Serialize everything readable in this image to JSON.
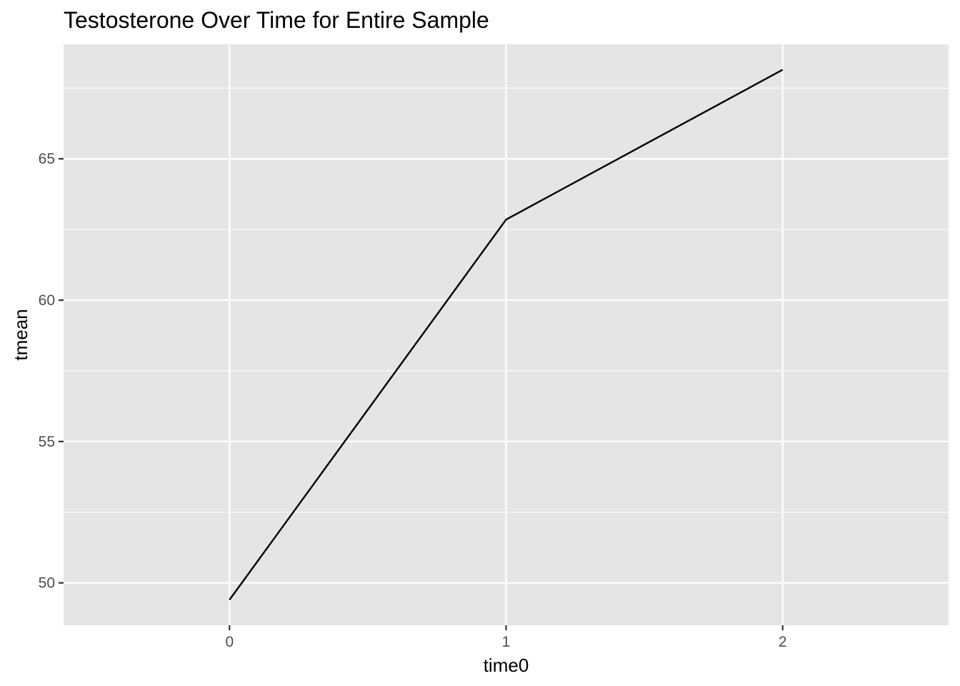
{
  "chart_data": {
    "type": "line",
    "title": "Testosterone Over Time for Entire Sample",
    "xlabel": "time0",
    "ylabel": "tmean",
    "x": [
      0,
      1,
      2
    ],
    "series": [
      {
        "values": [
          49.4,
          62.85,
          68.15
        ]
      }
    ],
    "xlim": [
      -0.6,
      2.6
    ],
    "ylim": [
      48.5,
      69.05
    ],
    "x_ticks": [
      0,
      1,
      2
    ],
    "x_tick_labels": [
      "0",
      "1",
      "2"
    ],
    "y_ticks": [
      50,
      55,
      60,
      65
    ],
    "y_tick_labels": [
      "50",
      "55",
      "60",
      "65"
    ],
    "y_minor_ticks": [
      52.5,
      57.5,
      62.5,
      67.5
    ],
    "grid": true,
    "legend": "none",
    "colors": {
      "panel_background": "#e5e5e5",
      "grid_line": "#ffffff",
      "series_line": "#000000",
      "tick_mark": "#333333",
      "tick_label": "#4d4d4d"
    }
  }
}
